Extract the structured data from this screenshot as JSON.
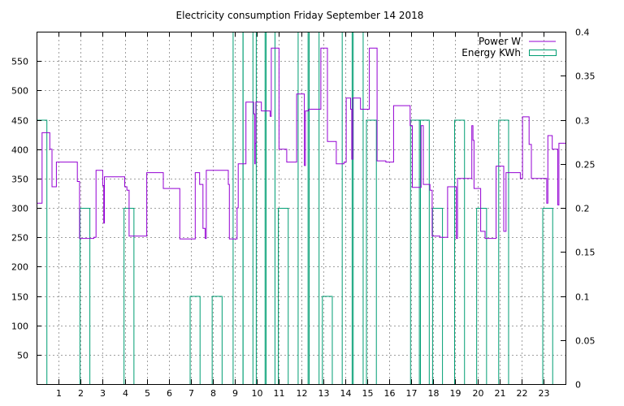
{
  "chart_data": {
    "type": "line",
    "title": "Electricity consumption Friday September 14 2018",
    "x_ticks": [
      "1",
      "2",
      "3",
      "4",
      "5",
      "6",
      "7",
      "8",
      "9",
      "10",
      "11",
      "12",
      "13",
      "14",
      "15",
      "16",
      "17",
      "18",
      "19",
      "20",
      "21",
      "22",
      "23"
    ],
    "xlim": [
      0,
      24
    ],
    "y_left": {
      "ylim": [
        0,
        600
      ],
      "ticks": [
        "50",
        "100",
        "150",
        "200",
        "250",
        "300",
        "350",
        "400",
        "450",
        "500",
        "550"
      ]
    },
    "y_right": {
      "ylim": [
        0,
        0.4
      ],
      "ticks": [
        "0",
        "0.05",
        "0.1",
        "0.15",
        "0.2",
        "0.25",
        "0.3",
        "0.35",
        "0.4"
      ]
    },
    "grid": true,
    "legend_position": "top-right",
    "colors": {
      "power": "#9400d3",
      "energy": "#009e73"
    },
    "series": [
      {
        "name": "Power W",
        "axis": "left",
        "style": "steps",
        "points": [
          [
            0.0,
            308
          ],
          [
            0.25,
            428
          ],
          [
            0.6,
            400
          ],
          [
            0.7,
            336
          ],
          [
            0.9,
            378
          ],
          [
            1.85,
            345
          ],
          [
            1.95,
            248
          ],
          [
            2.6,
            250
          ],
          [
            2.7,
            364
          ],
          [
            3.0,
            338
          ],
          [
            3.05,
            274
          ],
          [
            3.08,
            353
          ],
          [
            4.0,
            336
          ],
          [
            4.1,
            330
          ],
          [
            4.2,
            252
          ],
          [
            4.9,
            252
          ],
          [
            5.0,
            360
          ],
          [
            5.75,
            333
          ],
          [
            6.5,
            247
          ],
          [
            7.2,
            360
          ],
          [
            7.4,
            340
          ],
          [
            7.55,
            265
          ],
          [
            7.65,
            248
          ],
          [
            7.7,
            364
          ],
          [
            8.7,
            340
          ],
          [
            8.75,
            247
          ],
          [
            9.1,
            300
          ],
          [
            9.15,
            375
          ],
          [
            9.5,
            480
          ],
          [
            9.85,
            460
          ],
          [
            9.9,
            375
          ],
          [
            9.92,
            410
          ],
          [
            9.95,
            480
          ],
          [
            10.2,
            465
          ],
          [
            10.6,
            456
          ],
          [
            10.65,
            572
          ],
          [
            11.0,
            400
          ],
          [
            11.35,
            378
          ],
          [
            11.8,
            494
          ],
          [
            12.15,
            372
          ],
          [
            12.2,
            465
          ],
          [
            12.35,
            468
          ],
          [
            12.9,
            572
          ],
          [
            13.2,
            413
          ],
          [
            13.6,
            375
          ],
          [
            13.95,
            378
          ],
          [
            14.05,
            487
          ],
          [
            14.25,
            468
          ],
          [
            14.3,
            383
          ],
          [
            14.35,
            487
          ],
          [
            14.7,
            468
          ],
          [
            15.1,
            572
          ],
          [
            15.45,
            380
          ],
          [
            15.85,
            378
          ],
          [
            16.2,
            474
          ],
          [
            16.95,
            440
          ],
          [
            17.05,
            335
          ],
          [
            17.45,
            440
          ],
          [
            17.55,
            340
          ],
          [
            17.85,
            330
          ],
          [
            17.95,
            252
          ],
          [
            18.3,
            250
          ],
          [
            18.65,
            336
          ],
          [
            19.05,
            248
          ],
          [
            19.1,
            350
          ],
          [
            19.75,
            440
          ],
          [
            19.8,
            415
          ],
          [
            19.85,
            333
          ],
          [
            20.15,
            260
          ],
          [
            20.35,
            248
          ],
          [
            20.85,
            371
          ],
          [
            21.2,
            260
          ],
          [
            21.3,
            360
          ],
          [
            21.95,
            350
          ],
          [
            22.05,
            455
          ],
          [
            22.35,
            408
          ],
          [
            22.45,
            350
          ],
          [
            23.15,
            308
          ],
          [
            23.2,
            423
          ],
          [
            23.4,
            400
          ],
          [
            23.65,
            305
          ],
          [
            23.7,
            410
          ],
          [
            24.0,
            410
          ]
        ]
      },
      {
        "name": "Energy KWh",
        "axis": "right",
        "style": "impulse-boxes",
        "bars": [
          [
            0.0,
            0.3
          ],
          [
            1.95,
            0.2
          ],
          [
            3.95,
            0.2
          ],
          [
            6.95,
            0.1
          ],
          [
            7.95,
            0.1
          ],
          [
            8.9,
            0.4
          ],
          [
            9.35,
            0.4
          ],
          [
            9.95,
            0.4
          ],
          [
            10.35,
            0.4
          ],
          [
            10.95,
            0.2
          ],
          [
            11.85,
            0.4
          ],
          [
            12.35,
            0.4
          ],
          [
            12.95,
            0.1
          ],
          [
            13.85,
            0.4
          ],
          [
            14.35,
            0.4
          ],
          [
            14.95,
            0.3
          ],
          [
            16.95,
            0.3
          ],
          [
            17.35,
            0.3
          ],
          [
            17.95,
            0.2
          ],
          [
            18.95,
            0.3
          ],
          [
            19.95,
            0.2
          ],
          [
            20.95,
            0.3
          ],
          [
            22.95,
            0.2
          ]
        ],
        "bar_width": 0.45
      }
    ]
  }
}
